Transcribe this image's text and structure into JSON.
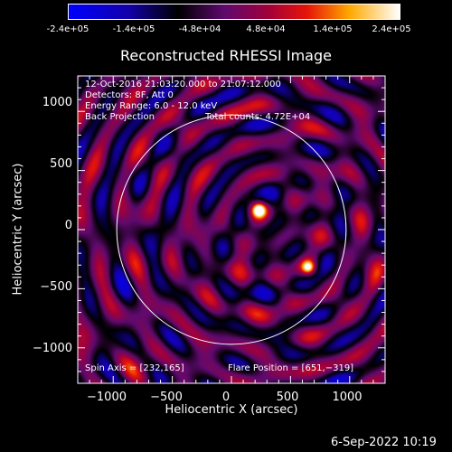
{
  "colorbar": {
    "tick_labels": [
      "-2.4e+05",
      "-1.4e+05",
      "-4.8e+04",
      "4.8e+04",
      "1.4e+05",
      "2.4e+05"
    ]
  },
  "chart_data": {
    "type": "heatmap",
    "title": "Reconstructed RHESSI Image",
    "xlabel": "Heliocentric X (arcsec)",
    "ylabel": "Heliocentric Y (arcsec)",
    "xlim": [
      -1300,
      1300
    ],
    "ylim": [
      -1300,
      1300
    ],
    "x_ticks": [
      "−1000",
      "−500",
      "0",
      "500",
      "1000"
    ],
    "y_ticks": [
      "1000",
      "500",
      "0",
      "−500",
      "−1000"
    ],
    "colorbar_range": [
      -240000,
      240000
    ],
    "solar_limb_radius_arcsec": 970,
    "sources": [
      {
        "x": 232,
        "y": 165,
        "peak": 240000
      },
      {
        "x": 651,
        "y": -319,
        "peak": 210000
      }
    ],
    "annotations": {
      "time_range": "12-Oct-2016 21:03:20.000 to 21:07:12.000",
      "detectors": "Detectors: 8F, Att 0",
      "energy": "Energy Range: 6.0 - 12.0 keV",
      "method": "Back Projection",
      "counts": "Total counts: 4.72E+04",
      "spin_axis": "Spin Axis = [232,165]",
      "flare_position": "Flare Position = [651,−319]"
    }
  },
  "footer": {
    "date": "6-Sep-2022 10:19"
  },
  "colors": {
    "background": "#000000",
    "text": "#ffffff",
    "limb": "#ffffff"
  }
}
